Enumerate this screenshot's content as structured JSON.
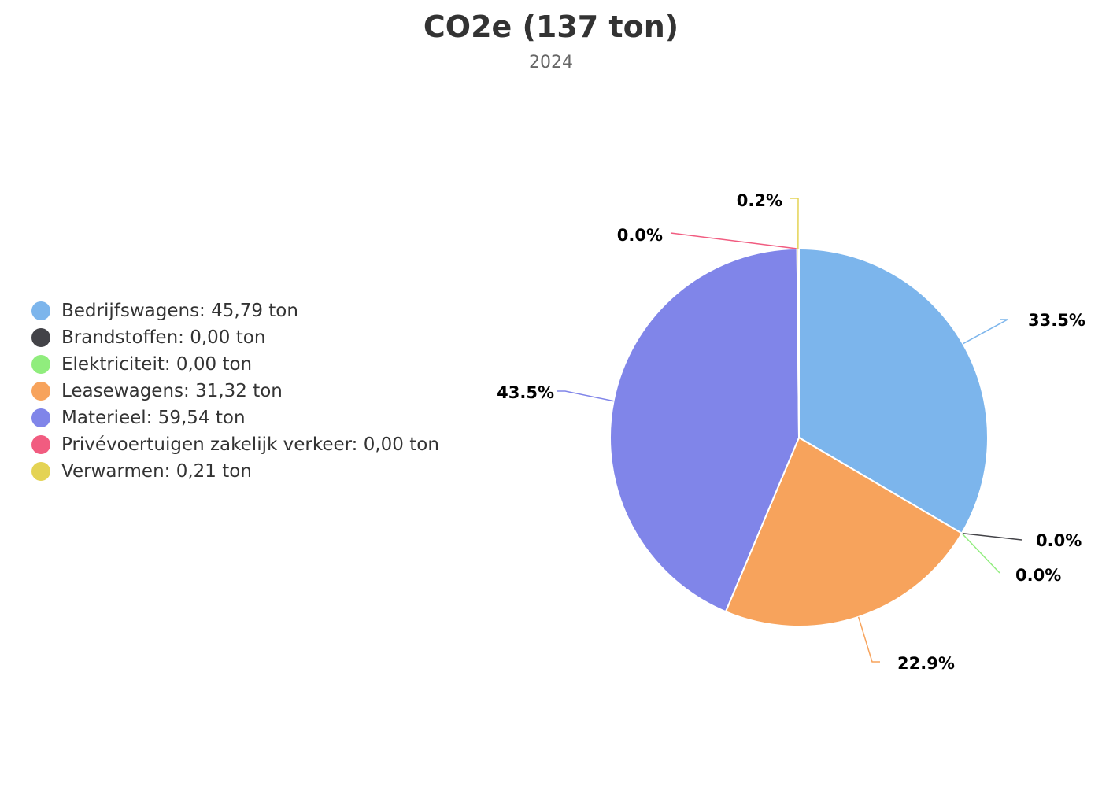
{
  "chart_data": {
    "type": "pie",
    "title": "CO2e (137 ton)",
    "subtitle": "2024",
    "legend_position": "left",
    "slices": [
      {
        "name": "Bedrijfswagens",
        "legend_label": "Bedrijfswagens: 45,79 ton",
        "value": 45.79,
        "percent_label": "33.5%",
        "color": "#7cb5ec"
      },
      {
        "name": "Brandstoffen",
        "legend_label": "Brandstoffen: 0,00 ton",
        "value": 0.0,
        "percent_label": "0.0%",
        "color": "#434348"
      },
      {
        "name": "Elektriciteit",
        "legend_label": "Elektriciteit: 0,00 ton",
        "value": 0.0,
        "percent_label": "0.0%",
        "color": "#90ed7d"
      },
      {
        "name": "Leasewagens",
        "legend_label": "Leasewagens: 31,32 ton",
        "value": 31.32,
        "percent_label": "22.9%",
        "color": "#f7a35c"
      },
      {
        "name": "Materieel",
        "legend_label": "Materieel: 59,54 ton",
        "value": 59.54,
        "percent_label": "43.5%",
        "color": "#8085e9"
      },
      {
        "name": "Privévoertuigen zakelijk verkeer",
        "legend_label": "Privévoertuigen zakelijk verkeer: 0,00 ton",
        "value": 0.0,
        "percent_label": "0.0%",
        "color": "#f15c80"
      },
      {
        "name": "Verwarmen",
        "legend_label": "Verwarmen: 0,21 ton",
        "value": 0.21,
        "percent_label": "0.2%",
        "color": "#e4d354"
      }
    ]
  }
}
